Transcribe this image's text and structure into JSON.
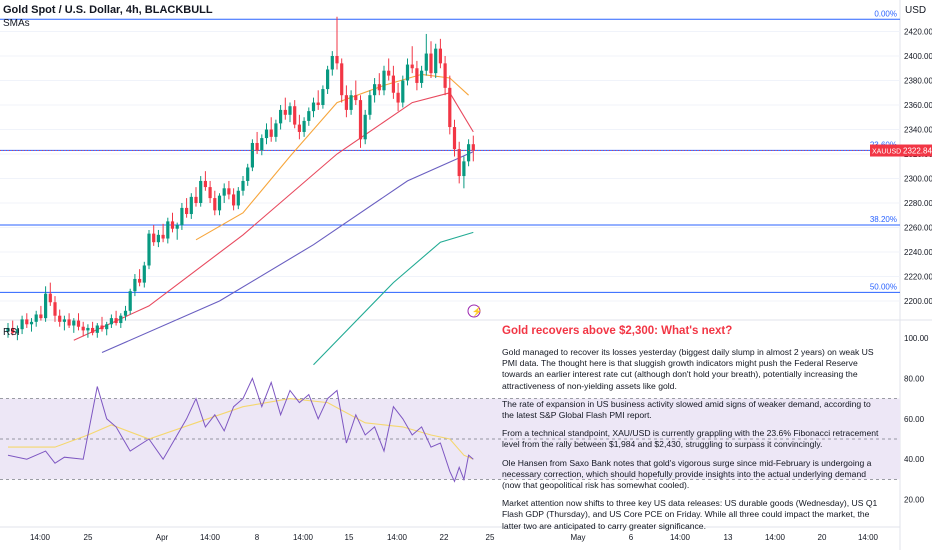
{
  "header": {
    "symbol_title": "Gold Spot / U.S. Dollar, 4h, BLACKBULL",
    "study_label": "SMAs",
    "rsi_label": "RSI",
    "currency": "USD"
  },
  "price_axis": {
    "ticks": [
      "2420.00",
      "2400.00",
      "2380.00",
      "2360.00",
      "2340.00",
      "2320.00",
      "2300.00",
      "2280.00",
      "2260.00",
      "2240.00",
      "2220.00",
      "2200.00"
    ],
    "tick_values": [
      2420,
      2400,
      2380,
      2360,
      2340,
      2320,
      2300,
      2280,
      2260,
      2240,
      2220,
      2200
    ]
  },
  "rsi_axis": {
    "ticks": [
      "100.00",
      "80.00",
      "60.00",
      "40.00",
      "20.00"
    ],
    "tick_values": [
      100,
      80,
      60,
      40,
      20
    ]
  },
  "last_price": {
    "symbol": "XAUUSD",
    "value": "2322.84",
    "color": "#f23645"
  },
  "fib_labels": [
    "0.00%",
    "23.60%",
    "38.20%",
    "50.00%"
  ],
  "time_axis": [
    "14:00",
    "25",
    "Apr",
    "14:00",
    "8",
    "14:00",
    "15",
    "14:00",
    "22",
    "25",
    "May",
    "6",
    "14:00",
    "13",
    "14:00",
    "20",
    "14:00"
  ],
  "colors": {
    "up": "#089981",
    "down": "#f23645",
    "fib": "#2962ff",
    "sma_fast": "#f7a63c",
    "sma_mid": "#e84a5f",
    "sma_slow": "#6a5fc1",
    "sma_long": "#22ab94",
    "rsi_line": "#7e57c2",
    "rsi_ma": "#f5d76e",
    "rsi_band": "#ede7f6"
  },
  "news": {
    "title": "Gold recovers above $2,300: What's next?",
    "paragraphs": [
      "Gold managed to recover its losses yesterday (biggest daily slump in almost 2 years) on weak US PMI data. The thought here is that sluggish growth indicators might push the Federal Reserve towards an earlier interest rate cut (although don't hold your breath), potentially increasing the attractiveness of non-yielding assets like gold.",
      "The rate of expansion in US business activity slowed amid signs of weaker demand, according to the latest S&P Global Flash PMI report.",
      "From a technical standpoint, XAU/USD is currently grappling with the 23.6% Fibonacci retracement level from the rally between $1,984 and $2,430, struggling to surpass it convincingly.",
      "Ole Hansen from Saxo Bank notes that gold's vigorous surge since mid-February is undergoing a necessary correction, which should hopefully provide insights into the actual underlying demand (now that geopolitical risk has somewhat cooled).",
      "Market attention now shifts to three key US data releases: US durable goods (Wednesday), US Q1 Flash GDP (Thursday), and US Core PCE on Friday. While all three could impact the market, the latter two are anticipated to carry greater significance."
    ]
  },
  "chart_data": {
    "type": "candlestick",
    "title": "Gold Spot / U.S. Dollar, 4h, BLACKBULL",
    "price_range": [
      2190,
      2440
    ],
    "rsi_range": [
      0,
      100
    ],
    "fib_levels": [
      {
        "label": "0.00%",
        "price": 2430
      },
      {
        "label": "23.60%",
        "price": 2323
      },
      {
        "label": "38.20%",
        "price": 2262
      },
      {
        "label": "50.00%",
        "price": 2207
      }
    ],
    "rsi_bands": [
      30,
      70
    ],
    "candles": [
      [
        2175,
        2182,
        2170,
        2178
      ],
      [
        2178,
        2184,
        2172,
        2174
      ],
      [
        2174,
        2180,
        2168,
        2177
      ],
      [
        2177,
        2188,
        2173,
        2185
      ],
      [
        2185,
        2190,
        2178,
        2181
      ],
      [
        2181,
        2186,
        2175,
        2183
      ],
      [
        2183,
        2192,
        2179,
        2189
      ],
      [
        2189,
        2196,
        2184,
        2186
      ],
      [
        2186,
        2212,
        2183,
        2206
      ],
      [
        2206,
        2215,
        2196,
        2199
      ],
      [
        2199,
        2204,
        2183,
        2188
      ],
      [
        2188,
        2193,
        2179,
        2183
      ],
      [
        2183,
        2188,
        2176,
        2185
      ],
      [
        2185,
        2190,
        2178,
        2180
      ],
      [
        2180,
        2186,
        2174,
        2184
      ],
      [
        2184,
        2190,
        2176,
        2179
      ],
      [
        2179,
        2183,
        2171,
        2176
      ],
      [
        2176,
        2181,
        2170,
        2178
      ],
      [
        2178,
        2183,
        2172,
        2174
      ],
      [
        2174,
        2182,
        2170,
        2180
      ],
      [
        2180,
        2187,
        2175,
        2177
      ],
      [
        2177,
        2183,
        2172,
        2181
      ],
      [
        2181,
        2189,
        2178,
        2186
      ],
      [
        2186,
        2192,
        2180,
        2182
      ],
      [
        2182,
        2190,
        2178,
        2188
      ],
      [
        2188,
        2196,
        2184,
        2192
      ],
      [
        2192,
        2210,
        2189,
        2208
      ],
      [
        2208,
        2222,
        2204,
        2218
      ],
      [
        2218,
        2226,
        2212,
        2215
      ],
      [
        2215,
        2232,
        2211,
        2229
      ],
      [
        2229,
        2258,
        2226,
        2255
      ],
      [
        2255,
        2262,
        2245,
        2248
      ],
      [
        2248,
        2258,
        2244,
        2254
      ],
      [
        2254,
        2263,
        2248,
        2251
      ],
      [
        2251,
        2268,
        2247,
        2265
      ],
      [
        2265,
        2272,
        2256,
        2259
      ],
      [
        2259,
        2264,
        2250,
        2262
      ],
      [
        2262,
        2280,
        2258,
        2276
      ],
      [
        2276,
        2284,
        2268,
        2271
      ],
      [
        2271,
        2288,
        2267,
        2285
      ],
      [
        2285,
        2293,
        2277,
        2280
      ],
      [
        2280,
        2302,
        2277,
        2298
      ],
      [
        2298,
        2306,
        2290,
        2293
      ],
      [
        2293,
        2298,
        2280,
        2284
      ],
      [
        2284,
        2290,
        2270,
        2274
      ],
      [
        2274,
        2288,
        2270,
        2286
      ],
      [
        2286,
        2296,
        2280,
        2292
      ],
      [
        2292,
        2298,
        2283,
        2287
      ],
      [
        2287,
        2292,
        2274,
        2278
      ],
      [
        2278,
        2293,
        2275,
        2290
      ],
      [
        2290,
        2302,
        2286,
        2298
      ],
      [
        2298,
        2312,
        2294,
        2309
      ],
      [
        2309,
        2332,
        2306,
        2329
      ],
      [
        2329,
        2338,
        2320,
        2323
      ],
      [
        2323,
        2336,
        2319,
        2333
      ],
      [
        2333,
        2345,
        2328,
        2340
      ],
      [
        2340,
        2350,
        2330,
        2334
      ],
      [
        2334,
        2348,
        2330,
        2345
      ],
      [
        2345,
        2360,
        2340,
        2356
      ],
      [
        2356,
        2366,
        2348,
        2352
      ],
      [
        2352,
        2362,
        2346,
        2359
      ],
      [
        2359,
        2364,
        2341,
        2344
      ],
      [
        2344,
        2352,
        2332,
        2338
      ],
      [
        2338,
        2350,
        2334,
        2347
      ],
      [
        2347,
        2358,
        2343,
        2355
      ],
      [
        2355,
        2366,
        2350,
        2362
      ],
      [
        2362,
        2372,
        2356,
        2360
      ],
      [
        2360,
        2376,
        2357,
        2373
      ],
      [
        2373,
        2392,
        2369,
        2389
      ],
      [
        2389,
        2404,
        2384,
        2400
      ],
      [
        2400,
        2432,
        2389,
        2394
      ],
      [
        2394,
        2398,
        2362,
        2368
      ],
      [
        2368,
        2376,
        2350,
        2356
      ],
      [
        2356,
        2372,
        2352,
        2368
      ],
      [
        2368,
        2380,
        2360,
        2364
      ],
      [
        2364,
        2368,
        2325,
        2332
      ],
      [
        2332,
        2356,
        2328,
        2352
      ],
      [
        2352,
        2372,
        2348,
        2368
      ],
      [
        2368,
        2382,
        2362,
        2377
      ],
      [
        2377,
        2386,
        2368,
        2372
      ],
      [
        2372,
        2392,
        2368,
        2388
      ],
      [
        2388,
        2398,
        2380,
        2384
      ],
      [
        2384,
        2392,
        2365,
        2370
      ],
      [
        2370,
        2378,
        2355,
        2362
      ],
      [
        2362,
        2384,
        2358,
        2380
      ],
      [
        2380,
        2398,
        2376,
        2393
      ],
      [
        2393,
        2408,
        2386,
        2390
      ],
      [
        2390,
        2396,
        2372,
        2378
      ],
      [
        2378,
        2392,
        2374,
        2388
      ],
      [
        2388,
        2418,
        2384,
        2402
      ],
      [
        2402,
        2412,
        2382,
        2386
      ],
      [
        2386,
        2410,
        2382,
        2406
      ],
      [
        2406,
        2414,
        2390,
        2394
      ],
      [
        2394,
        2400,
        2368,
        2374
      ],
      [
        2374,
        2384,
        2336,
        2342
      ],
      [
        2342,
        2348,
        2318,
        2324
      ],
      [
        2324,
        2330,
        2296,
        2302
      ],
      [
        2302,
        2318,
        2292,
        2314
      ],
      [
        2314,
        2332,
        2310,
        2328
      ],
      [
        2328,
        2335,
        2314,
        2323
      ]
    ],
    "sma_fast": [
      [
        40,
        2250
      ],
      [
        50,
        2272
      ],
      [
        60,
        2318
      ],
      [
        70,
        2362
      ],
      [
        80,
        2376
      ],
      [
        88,
        2385
      ],
      [
        94,
        2382
      ],
      [
        98,
        2368
      ]
    ],
    "sma_mid": [
      [
        14,
        2168
      ],
      [
        30,
        2196
      ],
      [
        50,
        2254
      ],
      [
        70,
        2320
      ],
      [
        86,
        2362
      ],
      [
        94,
        2370
      ],
      [
        99,
        2338
      ]
    ],
    "sma_slow": [
      [
        20,
        2158
      ],
      [
        45,
        2200
      ],
      [
        65,
        2246
      ],
      [
        85,
        2298
      ],
      [
        99,
        2322
      ]
    ],
    "sma_long": [
      [
        65,
        2148
      ],
      [
        82,
        2215
      ],
      [
        92,
        2248
      ],
      [
        99,
        2256
      ]
    ],
    "rsi": [
      [
        0,
        42
      ],
      [
        4,
        40
      ],
      [
        8,
        44
      ],
      [
        10,
        38
      ],
      [
        12,
        41
      ],
      [
        16,
        40
      ],
      [
        19,
        76
      ],
      [
        21,
        60
      ],
      [
        23,
        56
      ],
      [
        26,
        44
      ],
      [
        30,
        50
      ],
      [
        33,
        40
      ],
      [
        36,
        52
      ],
      [
        38,
        60
      ],
      [
        40,
        70
      ],
      [
        42,
        56
      ],
      [
        44,
        62
      ],
      [
        46,
        54
      ],
      [
        48,
        66
      ],
      [
        50,
        70
      ],
      [
        52,
        80
      ],
      [
        54,
        66
      ],
      [
        56,
        78
      ],
      [
        58,
        62
      ],
      [
        60,
        74
      ],
      [
        62,
        68
      ],
      [
        64,
        72
      ],
      [
        66,
        60
      ],
      [
        68,
        70
      ],
      [
        70,
        74
      ],
      [
        72,
        48
      ],
      [
        74,
        62
      ],
      [
        76,
        52
      ],
      [
        78,
        56
      ],
      [
        80,
        44
      ],
      [
        82,
        66
      ],
      [
        84,
        60
      ],
      [
        86,
        52
      ],
      [
        88,
        56
      ],
      [
        90,
        46
      ],
      [
        92,
        48
      ],
      [
        94,
        34
      ],
      [
        95,
        29
      ],
      [
        96,
        36
      ],
      [
        97,
        30
      ],
      [
        98,
        42
      ],
      [
        99,
        40
      ]
    ],
    "rsi_ma": [
      [
        0,
        46
      ],
      [
        10,
        46
      ],
      [
        17,
        52
      ],
      [
        22,
        57
      ],
      [
        30,
        50
      ],
      [
        40,
        58
      ],
      [
        50,
        66
      ],
      [
        60,
        70
      ],
      [
        68,
        68
      ],
      [
        76,
        58
      ],
      [
        84,
        56
      ],
      [
        90,
        52
      ],
      [
        94,
        50
      ],
      [
        97,
        42
      ],
      [
        99,
        40
      ]
    ]
  }
}
